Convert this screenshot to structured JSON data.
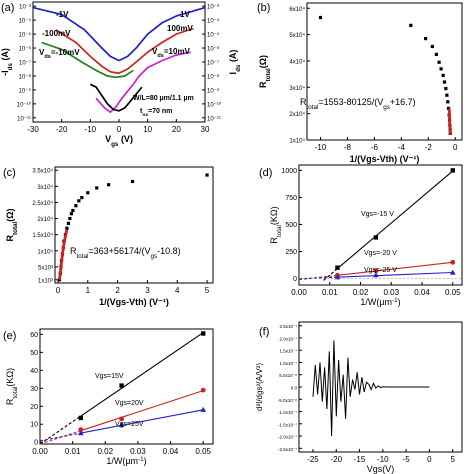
{
  "chart_data": [
    {
      "panel": "(a)",
      "type": "line",
      "x_axis": {
        "label": "V",
        "sub": "gs",
        "unit": " (V)",
        "ticks": [
          "-30",
          "-20",
          "-10",
          "0",
          "10",
          "20",
          "30"
        ],
        "range": [
          -30,
          30
        ]
      },
      "y_axis_left": {
        "label": "-I",
        "sub": "ds",
        "unit": " (A)",
        "ticks": [
          "10⁻³",
          "10⁻⁴",
          "10⁻⁵",
          "10⁻⁶",
          "10⁻⁷",
          "10⁻⁸",
          "10⁻⁹",
          "10⁻¹⁰",
          "10⁻¹¹"
        ],
        "range": [
          -11.3,
          -2.7
        ]
      },
      "y_axis_right": {
        "label": "I",
        "sub": "ds",
        "unit": " (A)",
        "ticks": [
          "10⁻³",
          "10⁻⁴",
          "10⁻⁵",
          "10⁻⁶",
          "10⁻⁷",
          "10⁻⁸",
          "10⁻⁹",
          "10⁻¹⁰",
          "10⁻¹¹"
        ]
      },
      "annotations": {
        "vds_neg1": "-1V",
        "vds_neg100": "-100mV",
        "vds_neg10_a": "V",
        "vds_neg10_b": "ds",
        "vds_neg10_c": "=-10mV",
        "vds_1": "1V",
        "vds_100": "100mV",
        "vds_10_a": "V",
        "vds_10_b": "ds",
        "vds_10_c": "=10mV",
        "wl": "W/L=80 µm/1.1 µm",
        "tox_a": "t",
        "tox_b": "ox",
        "tox_c": "=70 nm"
      },
      "series": [
        {
          "name": "-1V",
          "color": "#2020d0",
          "x": [
            -30,
            -20,
            -12,
            -6,
            -3,
            0,
            3,
            6,
            10,
            15,
            20,
            25,
            30
          ],
          "y": [
            -3.1,
            -3.6,
            -4.7,
            -6.0,
            -6.6,
            -6.9,
            -6.6,
            -6.0,
            -5.0,
            -4.2,
            -3.7,
            -3.4,
            -3.1
          ]
        },
        {
          "name": "100mV",
          "color": "#d02020",
          "x": [
            -22,
            -15,
            -10,
            -6,
            -3,
            0,
            3,
            6,
            10,
            15,
            20,
            26
          ],
          "y": [
            -4.7,
            -5.6,
            -6.6,
            -7.3,
            -7.7,
            -7.8,
            -7.5,
            -7.0,
            -6.3,
            -5.6,
            -5.0,
            -4.6
          ]
        },
        {
          "name": "-100mV",
          "color": "#208020",
          "x": [
            -27,
            -20,
            -13,
            -8,
            -4,
            -1,
            2,
            5
          ],
          "y": [
            -5.6,
            -6.1,
            -7.0,
            -7.6,
            -8.0,
            -8.1,
            -8.0,
            -7.6
          ]
        },
        {
          "name": "10mV",
          "color": "#d020d0",
          "x": [
            -8,
            -5,
            -3,
            -1,
            1,
            3,
            5,
            7,
            10,
            15,
            20,
            25
          ],
          "y": [
            -9.6,
            -10.3,
            -10.6,
            -10.2,
            -9.6,
            -9.1,
            -8.6,
            -8.0,
            -7.4,
            -6.9,
            -6.5,
            -6.3
          ]
        },
        {
          "name": "-10mV",
          "color": "#000000",
          "x": [
            -10,
            -8,
            -6,
            -4,
            -2,
            0,
            2,
            4,
            6,
            8
          ],
          "y": [
            -8.6,
            -8.8,
            -9.4,
            -10.0,
            -10.4,
            -10.5,
            -10.3,
            -9.8,
            -9.3,
            -8.8
          ]
        }
      ]
    },
    {
      "panel": "(b)",
      "type": "scatter",
      "x_axis": {
        "label": "1/(Vgs-Vth)",
        "unit": " (V⁻¹)",
        "ticks": [
          "-10",
          "-8",
          "-6",
          "-4",
          "-2",
          "0"
        ],
        "range": [
          -11,
          0.5
        ]
      },
      "y_axis": {
        "label": "R",
        "sub": "total",
        "unit": "(Ω)",
        "ticks": [
          "1x10⁴",
          "2x10⁴",
          "3x10⁴",
          "4x10⁴",
          "5x10⁴",
          "6x10⁴"
        ],
        "range": [
          10000,
          62000
        ]
      },
      "fit_label": "R",
      "fit_sub": "total",
      "fit_formula": "=1553-80125/(V",
      "fit_formula_sub": "gs",
      "fit_formula_end": "+16.7)",
      "points_x": [
        -10,
        -3.3,
        -2.2,
        -1.7,
        -1.4,
        -1.2,
        -1.05,
        -0.9,
        -0.8,
        -0.7,
        -0.62,
        -0.55,
        -0.5,
        -0.45,
        -0.42,
        -0.4,
        -0.38,
        -0.37
      ],
      "points_y": [
        56500,
        53500,
        48500,
        45500,
        42500,
        39500,
        37000,
        34500,
        32000,
        29500,
        27000,
        24500,
        22000,
        19500,
        17500,
        15500,
        14000,
        12500
      ],
      "fit_x": [
        -0.45,
        -0.43,
        -0.41,
        -0.39,
        -0.38,
        -0.37
      ],
      "fit_y": [
        22000,
        19000,
        16500,
        14500,
        13000,
        12000
      ]
    },
    {
      "panel": "(c)",
      "type": "scatter",
      "x_axis": {
        "label": "1/(Vgs-Vth)",
        "unit": " (V⁻¹)",
        "ticks": [
          "0",
          "1",
          "2",
          "3",
          "4",
          "5"
        ],
        "range": [
          -0.1,
          5.2
        ]
      },
      "y_axis": {
        "label": "R",
        "sub": "total",
        "unit": "(Ω)",
        "ticks": [
          "1x10³",
          "5x10³",
          "1x10⁴",
          "1.5x10⁴",
          "2x10⁴",
          "2.5x10⁴",
          "3x10⁴",
          "3.5x10⁴"
        ],
        "range": [
          0,
          36000
        ]
      },
      "fit_label": "R",
      "fit_sub": "total",
      "fit_formula": "=363+56174/(V",
      "fit_formula_sub": "gs",
      "fit_formula_end": "-10.8)",
      "points_x": [
        0.05,
        0.08,
        0.1,
        0.12,
        0.15,
        0.18,
        0.2,
        0.25,
        0.3,
        0.35,
        0.4,
        0.45,
        0.5,
        0.6,
        0.7,
        0.8,
        1.0,
        1.3,
        1.7,
        2.5,
        5.0
      ],
      "points_y": [
        1000,
        3000,
        5000,
        7000,
        9000,
        11000,
        13000,
        15000,
        17000,
        18500,
        20000,
        21500,
        22500,
        24000,
        25500,
        26500,
        28000,
        29500,
        30500,
        31500,
        33500
      ],
      "fit_x": [
        0.05,
        0.1,
        0.15,
        0.2,
        0.25,
        0.3
      ],
      "fit_y": [
        1000,
        5000,
        9000,
        12000,
        14500,
        16500
      ]
    },
    {
      "panel": "(d)",
      "type": "line",
      "x_axis": {
        "label": "1/W(µm",
        "sup": "-1",
        "unit": ")",
        "ticks": [
          "0.00",
          "0.01",
          "0.02",
          "0.03",
          "0.04",
          "0.05"
        ],
        "range": [
          0,
          0.053
        ]
      },
      "y_axis": {
        "label": "R",
        "sub": "total",
        "unit": "(KΩ)",
        "ticks": [
          "0",
          "250",
          "500",
          "750",
          "1000"
        ],
        "range": [
          -60,
          1050
        ]
      },
      "series": [
        {
          "name": "Vgs=-15 V",
          "color": "#000000",
          "marker": "square",
          "x": [
            0.0125,
            0.025,
            0.05
          ],
          "y": [
            100,
            380,
            1000
          ],
          "fit_range": [
            0.008,
            0.053
          ]
        },
        {
          "name": "Vgs=-20 V",
          "color": "#d02020",
          "marker": "circle",
          "x": [
            0.0125,
            0.025,
            0.05
          ],
          "y": [
            30,
            70,
            150
          ],
          "fit_range": [
            0,
            0.05
          ]
        },
        {
          "name": "Vgs=-25 V",
          "color": "#2020d0",
          "marker": "triangle",
          "x": [
            0.0125,
            0.025,
            0.05
          ],
          "y": [
            10,
            30,
            55
          ],
          "fit_range": [
            0,
            0.05
          ]
        }
      ]
    },
    {
      "panel": "(e)",
      "type": "line",
      "x_axis": {
        "label": "1/W(µm",
        "sup": "-1",
        "unit": ")",
        "ticks": [
          "0.00",
          "0.01",
          "0.02",
          "0.03",
          "0.04",
          "0.05"
        ],
        "range": [
          0,
          0.053
        ]
      },
      "y_axis": {
        "label": "R",
        "sub": "total",
        "unit": "(KΩ)",
        "ticks": [
          "0",
          "10",
          "20",
          "30",
          "40",
          "50",
          "60"
        ],
        "range": [
          -1,
          63
        ]
      },
      "series": [
        {
          "name": "Vgs=15V",
          "color": "#000000",
          "marker": "square",
          "x": [
            0.0125,
            0.025,
            0.05
          ],
          "y": [
            13.5,
            31.5,
            60.5
          ]
        },
        {
          "name": "Vgs=20V",
          "color": "#d02020",
          "marker": "circle",
          "x": [
            0.0125,
            0.025,
            0.05
          ],
          "y": [
            7,
            13,
            29
          ]
        },
        {
          "name": "Vgs=25V",
          "color": "#2020d0",
          "marker": "triangle",
          "x": [
            0.0125,
            0.025,
            0.05
          ],
          "y": [
            5,
            9.5,
            18
          ]
        }
      ]
    },
    {
      "panel": "(f)",
      "type": "line",
      "x_axis": {
        "label": "Vgs(V)",
        "ticks": [
          "-25",
          "-20",
          "-15",
          "-10",
          "-5",
          "0",
          "5"
        ],
        "range": [
          -28,
          7
        ]
      },
      "y_axis": {
        "label": "d²I/dgs²(A/V²)",
        "ticks": [
          "-2.5x10⁻⁷",
          "-2.0x10⁻⁷",
          "-1.5x10⁻⁷",
          "-1.0x10⁻⁷",
          "-5.0x10⁻⁸",
          "0.0",
          "5.0x10⁻⁸",
          "1.0x10⁻⁷",
          "1.5x10⁻⁷",
          "2.0x10⁻⁷",
          "2.5x10⁻⁷"
        ],
        "range": [
          -2.65e-07,
          2.65e-07
        ]
      },
      "series": [
        {
          "name": "",
          "color": "#000000",
          "x": [
            -25,
            -24.5,
            -24,
            -23.5,
            -23,
            -22.5,
            -22,
            -21.5,
            -21,
            -20.5,
            -20,
            -19.5,
            -19,
            -18.5,
            -18,
            -17.5,
            -17,
            -16.5,
            -16,
            -15.5,
            -15,
            -14.5,
            -14,
            -13.5,
            -13,
            -12.5,
            -12,
            -11.5,
            -11,
            -10.5,
            -10,
            -9,
            -8,
            -5,
            0
          ],
          "y": [
            -4e-08,
            9e-08,
            -3e-08,
            1e-07,
            -6e-08,
            8e-08,
            -9e-08,
            1.45e-07,
            -2e-07,
            1.9e-07,
            -1.2e-07,
            1.1e-07,
            -6e-08,
            5e-08,
            -1.3e-07,
            1.2e-07,
            -4e-08,
            3e-08,
            -1e-08,
            6e-08,
            -3e-08,
            4e-08,
            -2e-08,
            2e-08,
            1e-08,
            -1e-08,
            1.5e-08,
            -5e-09,
            5e-09,
            -3e-09,
            1e-09,
            0,
            0,
            0,
            0
          ]
        }
      ]
    }
  ]
}
